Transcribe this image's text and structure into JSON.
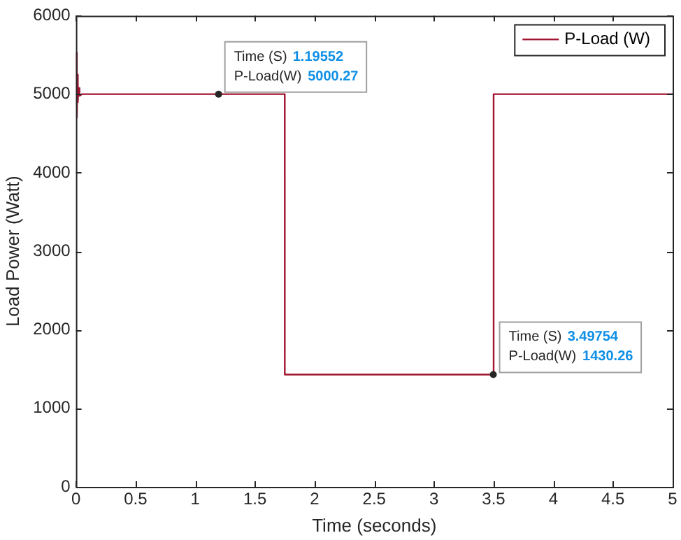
{
  "chart_data": {
    "type": "line",
    "xlabel": "Time (seconds)",
    "ylabel": "Load Power (Watt)",
    "xlim": [
      0,
      5
    ],
    "xticks": [
      0,
      0.5,
      1,
      1.5,
      2,
      2.5,
      3,
      3.5,
      4,
      4.5,
      5
    ],
    "ylim": [
      0,
      6000
    ],
    "yticks": [
      0,
      1000,
      2000,
      3000,
      4000,
      5000,
      6000
    ],
    "grid": false,
    "legend": "top right",
    "marker": "none",
    "line_style": "solid",
    "series": [
      {
        "name": "P-Load (W)",
        "color": "#a2142f",
        "x": [
          0.004,
          0.008,
          0.012,
          0.016,
          0.02,
          0.03,
          0.05,
          1.75,
          1.7501,
          3.5,
          3.5001,
          5
        ],
        "values": [
          5530,
          4700,
          5250,
          4900,
          5080,
          4980,
          5000,
          5000,
          1430,
          1430,
          5000,
          5000
        ]
      }
    ],
    "annotations": [
      {
        "text": "Time (S) 1.19552\nP-Load(W) 5000.27",
        "x": 1.19552,
        "y": 5000.27
      },
      {
        "text": "Time (S) 3.49754\nP-Load(W) 1430.26",
        "x": 3.49754,
        "y": 1430.26
      }
    ]
  }
}
